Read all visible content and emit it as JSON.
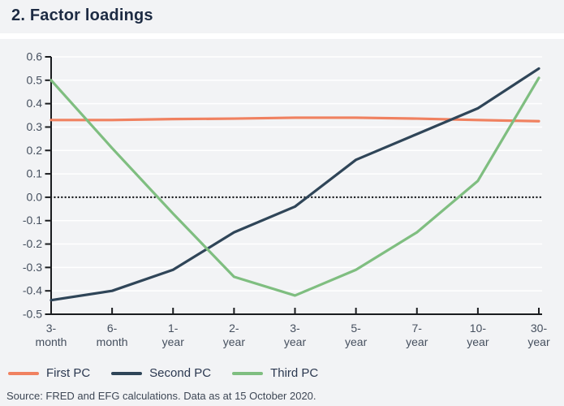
{
  "header": {
    "title": "2. Factor loadings"
  },
  "footer": {
    "source": "Source: FRED and EFG calculations. Data as at 15 October 2020."
  },
  "colors": {
    "panel_background": "#f2f3f5",
    "gridline": "#ffffff",
    "axis": "#1a1c1f",
    "tick_label": "#454f5e",
    "title_text": "#1d2b43",
    "legend_text": "#2b3850",
    "source_text": "#3e4755",
    "first_pc": "#f08160",
    "second_pc": "#2f4558",
    "third_pc": "#7fbe80"
  },
  "legend": {
    "items": [
      {
        "label": "First PC",
        "color": "#f08160"
      },
      {
        "label": "Second PC",
        "color": "#2f4558"
      },
      {
        "label": "Third PC",
        "color": "#7fbe80"
      }
    ]
  },
  "chart_data": {
    "type": "line",
    "title": "2. Factor loadings",
    "categories": [
      "3-month",
      "6-month",
      "1-year",
      "2-year",
      "3-year",
      "5-year",
      "7-year",
      "10-year",
      "30-year"
    ],
    "category_labels": [
      [
        "3-",
        "month"
      ],
      [
        "6-",
        "month"
      ],
      [
        "1-",
        "year"
      ],
      [
        "2-",
        "year"
      ],
      [
        "3-",
        "year"
      ],
      [
        "5-",
        "year"
      ],
      [
        "7-",
        "year"
      ],
      [
        "10-",
        "year"
      ],
      [
        "30-",
        "year"
      ]
    ],
    "series": [
      {
        "name": "First PC",
        "color": "#f08160",
        "values": [
          0.33,
          0.33,
          0.334,
          0.336,
          0.34,
          0.34,
          0.336,
          0.33,
          0.325
        ]
      },
      {
        "name": "Second PC",
        "color": "#2f4558",
        "values": [
          -0.44,
          -0.4,
          -0.31,
          -0.15,
          -0.04,
          0.16,
          0.27,
          0.38,
          0.55
        ]
      },
      {
        "name": "Third PC",
        "color": "#7fbe80",
        "values": [
          0.5,
          0.21,
          -0.07,
          -0.34,
          -0.42,
          -0.31,
          -0.15,
          0.07,
          0.51
        ]
      }
    ],
    "ylim": [
      -0.5,
      0.6
    ],
    "ytick_step": 0.1,
    "ytick_labels": [
      "0.6",
      "0.5",
      "0.4",
      "0.3",
      "0.2",
      "0.1",
      "0.0",
      "-0.1",
      "-0.2",
      "-0.3",
      "-0.4",
      "-0.5"
    ],
    "grid": "horizontal",
    "zero_line_dotted": true,
    "legend_position": "bottom-left",
    "xlabel": "",
    "ylabel": ""
  }
}
